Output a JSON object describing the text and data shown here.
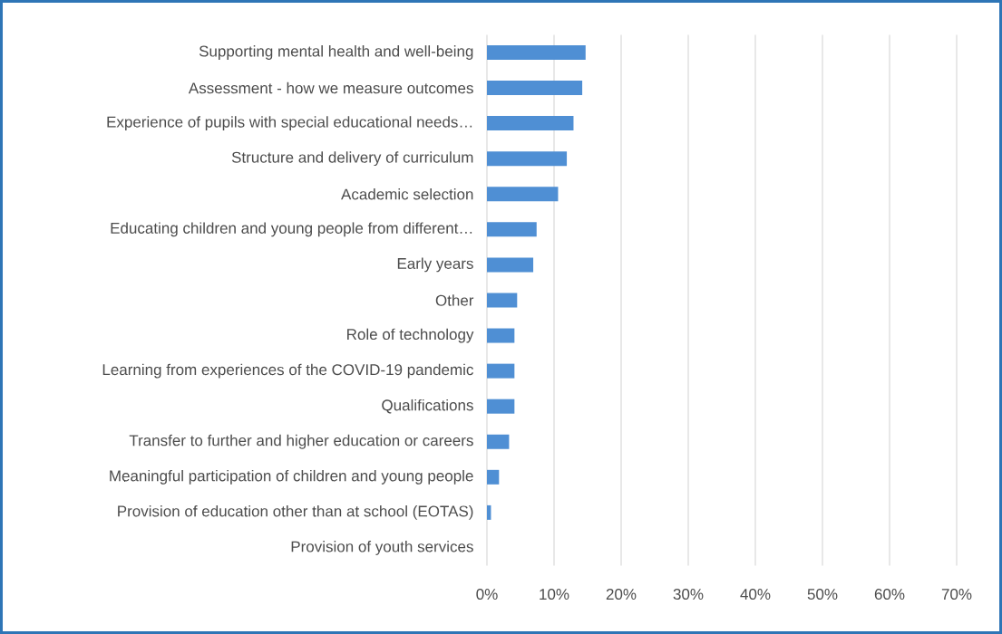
{
  "chart_data": {
    "type": "bar",
    "orientation": "horizontal",
    "categories": [
      "Supporting mental health and well-being",
      "Assessment - how we measure outcomes",
      "Experience of pupils with special educational needs…",
      "Structure and delivery of curriculum",
      "Academic selection",
      "Educating children and young people from different…",
      "Early years",
      "Other",
      "Role of technology",
      "Learning from experiences of the COVID-19 pandemic",
      "Qualifications",
      "Transfer to further and higher education or careers",
      "Meaningful participation of children and young people",
      "Provision of education other than at school (EOTAS)",
      "Provision of youth services"
    ],
    "values": [
      14.7,
      14.2,
      12.9,
      11.9,
      10.6,
      7.4,
      6.9,
      4.5,
      4.1,
      4.1,
      4.1,
      3.3,
      1.8,
      0.6,
      0
    ],
    "color": "#4f8fd4",
    "xlim": [
      0,
      70
    ],
    "xticks": [
      {
        "value": 0,
        "label": "0%"
      },
      {
        "value": 10,
        "label": "10%"
      },
      {
        "value": 20,
        "label": "20%"
      },
      {
        "value": 30,
        "label": "30%"
      },
      {
        "value": 40,
        "label": "40%"
      },
      {
        "value": 50,
        "label": "50%"
      },
      {
        "value": 60,
        "label": "60%"
      },
      {
        "value": 70,
        "label": "70%"
      }
    ],
    "grid": "x"
  }
}
